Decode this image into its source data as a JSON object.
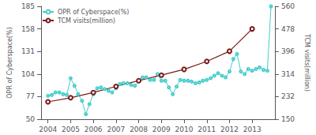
{
  "chart_data": {
    "type": "line",
    "ylabel": "OPR of Cyberspace(%)",
    "y2label": "TCM visits(million)",
    "series": [
      {
        "name": "OPR of Cyberspace(%)",
        "color": "#45CCCC",
        "marker": "circle",
        "x": [
          2004.0,
          2004.17,
          2004.33,
          2004.5,
          2004.67,
          2004.83,
          2005.0,
          2005.17,
          2005.33,
          2005.5,
          2005.67,
          2005.83,
          2006.0,
          2006.17,
          2006.33,
          2006.5,
          2006.67,
          2006.83,
          2007.0,
          2007.17,
          2007.33,
          2007.5,
          2007.67,
          2007.83,
          2008.0,
          2008.17,
          2008.33,
          2008.5,
          2008.67,
          2008.83,
          2009.0,
          2009.17,
          2009.33,
          2009.5,
          2009.67,
          2009.83,
          2010.0,
          2010.17,
          2010.33,
          2010.5,
          2010.67,
          2010.83,
          2011.0,
          2011.17,
          2011.33,
          2011.5,
          2011.67,
          2011.83,
          2012.0,
          2012.17,
          2012.33,
          2012.5,
          2012.67,
          2012.83,
          2013.0,
          2013.17,
          2013.33,
          2013.5,
          2013.67,
          2013.83
        ],
        "values": [
          78,
          79,
          82,
          82,
          80,
          79,
          99,
          90,
          80,
          72,
          56,
          68,
          80,
          87,
          88,
          86,
          84,
          82,
          87,
          92,
          93,
          93,
          91,
          90,
          97,
          100,
          100,
          97,
          97,
          104,
          96,
          96,
          88,
          80,
          89,
          97,
          96,
          96,
          95,
          93,
          94,
          96,
          97,
          99,
          102,
          105,
          102,
          100,
          107,
          122,
          128,
          107,
          104,
          110,
          108,
          110,
          112,
          109,
          108,
          185
        ]
      },
      {
        "name": "TCM visits(million)",
        "color": "#7B1A1A",
        "marker": "circle",
        "axis": "y2",
        "x": [
          2004,
          2005,
          2006,
          2007,
          2008,
          2009,
          2010,
          2011,
          2012,
          2013
        ],
        "values": [
          213,
          228,
          247,
          269,
          290,
          310,
          331,
          360,
          397,
          478
        ]
      }
    ],
    "xlim": [
      2003.7,
      2014.0
    ],
    "xticks": [
      2004,
      2005,
      2006,
      2007,
      2008,
      2009,
      2010,
      2011,
      2012,
      2013
    ],
    "ylim": [
      50,
      185
    ],
    "yticks": [
      50,
      77,
      104,
      131,
      158,
      185
    ],
    "y2lim": [
      150,
      560
    ],
    "y2ticks": [
      150,
      232,
      314,
      396,
      478,
      560
    ],
    "legend": "upper left",
    "grid": false
  }
}
